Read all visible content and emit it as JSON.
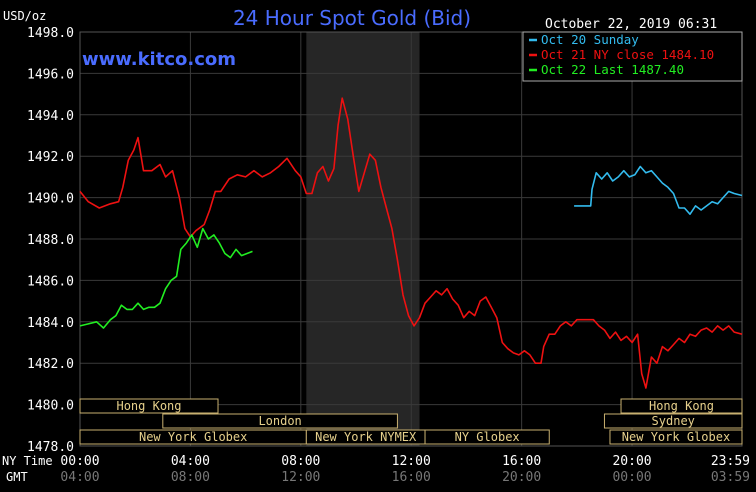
{
  "header": {
    "unit": "USD/oz",
    "title": "24 Hour Spot Gold (Bid)",
    "timestamp": "October 22, 2019 06:31",
    "website": "www.kitco.com"
  },
  "colors": {
    "background": "#000000",
    "grid": "#3a3a3a",
    "title": "#4a6cff",
    "website": "#4a6cff",
    "text": "#ffffff",
    "session_fill": "#e6d08c",
    "session_border": "#c8b070",
    "shade": "#262626"
  },
  "chart_data": {
    "type": "line",
    "title": "24 Hour Spot Gold (Bid)",
    "ylabel": "USD/oz",
    "ylim": [
      1478,
      1498
    ],
    "yticks": [
      "1498.0",
      "1496.0",
      "1494.0",
      "1492.0",
      "1490.0",
      "1488.0",
      "1486.0",
      "1484.0",
      "1482.0",
      "1480.0",
      "1478.0"
    ],
    "x_row_labels": {
      "ny_time": "NY Time",
      "gmt": "GMT"
    },
    "xticks_ny": [
      "00:00",
      "04:00",
      "08:00",
      "12:00",
      "16:00",
      "20:00",
      "23:59"
    ],
    "xticks_gmt": [
      "04:00",
      "08:00",
      "12:00",
      "16:00",
      "20:00",
      "00:00",
      "03:59"
    ],
    "xticks_hours": [
      0,
      4,
      8,
      12,
      16,
      20,
      23.983
    ],
    "xlim_hours": [
      0,
      23.983
    ],
    "grid": true,
    "legend_position": "top-right",
    "series": [
      {
        "name": "Oct 20 Sunday",
        "color": "#33bbee",
        "points": [
          [
            17.9,
            1489.6
          ],
          [
            18.5,
            1489.6
          ],
          [
            18.55,
            1490.4
          ],
          [
            18.7,
            1491.2
          ],
          [
            18.9,
            1490.9
          ],
          [
            19.1,
            1491.2
          ],
          [
            19.3,
            1490.8
          ],
          [
            19.5,
            1491.0
          ],
          [
            19.7,
            1491.3
          ],
          [
            19.9,
            1491.0
          ],
          [
            20.1,
            1491.1
          ],
          [
            20.3,
            1491.5
          ],
          [
            20.5,
            1491.2
          ],
          [
            20.7,
            1491.3
          ],
          [
            20.9,
            1491.0
          ],
          [
            21.1,
            1490.7
          ],
          [
            21.3,
            1490.5
          ],
          [
            21.5,
            1490.2
          ],
          [
            21.7,
            1489.5
          ],
          [
            21.9,
            1489.5
          ],
          [
            22.1,
            1489.2
          ],
          [
            22.3,
            1489.6
          ],
          [
            22.5,
            1489.4
          ],
          [
            22.7,
            1489.6
          ],
          [
            22.9,
            1489.8
          ],
          [
            23.1,
            1489.7
          ],
          [
            23.3,
            1490.0
          ],
          [
            23.5,
            1490.3
          ],
          [
            23.7,
            1490.2
          ],
          [
            23.983,
            1490.1
          ]
        ]
      },
      {
        "name": "Oct 21 NY close 1484.10",
        "color": "#ee1111",
        "points": [
          [
            0,
            1490.3
          ],
          [
            0.3,
            1489.8
          ],
          [
            0.7,
            1489.5
          ],
          [
            1.1,
            1489.7
          ],
          [
            1.4,
            1489.8
          ],
          [
            1.55,
            1490.5
          ],
          [
            1.75,
            1491.8
          ],
          [
            1.95,
            1492.3
          ],
          [
            2.1,
            1492.9
          ],
          [
            2.3,
            1491.3
          ],
          [
            2.6,
            1491.3
          ],
          [
            2.9,
            1491.6
          ],
          [
            3.1,
            1491.0
          ],
          [
            3.35,
            1491.3
          ],
          [
            3.6,
            1490.0
          ],
          [
            3.8,
            1488.5
          ],
          [
            4.0,
            1488.1
          ],
          [
            4.2,
            1488.4
          ],
          [
            4.5,
            1488.7
          ],
          [
            4.7,
            1489.4
          ],
          [
            4.9,
            1490.3
          ],
          [
            5.1,
            1490.3
          ],
          [
            5.4,
            1490.9
          ],
          [
            5.7,
            1491.1
          ],
          [
            6.0,
            1491.0
          ],
          [
            6.3,
            1491.3
          ],
          [
            6.6,
            1491.0
          ],
          [
            6.9,
            1491.2
          ],
          [
            7.2,
            1491.5
          ],
          [
            7.5,
            1491.9
          ],
          [
            7.8,
            1491.3
          ],
          [
            8.0,
            1491.0
          ],
          [
            8.2,
            1490.2
          ],
          [
            8.4,
            1490.2
          ],
          [
            8.6,
            1491.2
          ],
          [
            8.8,
            1491.5
          ],
          [
            9.0,
            1490.8
          ],
          [
            9.2,
            1491.4
          ],
          [
            9.35,
            1493.5
          ],
          [
            9.5,
            1494.8
          ],
          [
            9.7,
            1493.8
          ],
          [
            9.9,
            1492.0
          ],
          [
            10.1,
            1490.3
          ],
          [
            10.3,
            1491.2
          ],
          [
            10.5,
            1492.1
          ],
          [
            10.7,
            1491.8
          ],
          [
            10.9,
            1490.5
          ],
          [
            11.1,
            1489.5
          ],
          [
            11.3,
            1488.5
          ],
          [
            11.5,
            1487.0
          ],
          [
            11.7,
            1485.3
          ],
          [
            11.9,
            1484.3
          ],
          [
            12.1,
            1483.8
          ],
          [
            12.3,
            1484.2
          ],
          [
            12.5,
            1484.9
          ],
          [
            12.7,
            1485.2
          ],
          [
            12.9,
            1485.5
          ],
          [
            13.1,
            1485.3
          ],
          [
            13.3,
            1485.6
          ],
          [
            13.5,
            1485.1
          ],
          [
            13.7,
            1484.8
          ],
          [
            13.9,
            1484.2
          ],
          [
            14.1,
            1484.5
          ],
          [
            14.3,
            1484.3
          ],
          [
            14.5,
            1485.0
          ],
          [
            14.7,
            1485.2
          ],
          [
            14.9,
            1484.7
          ],
          [
            15.1,
            1484.2
          ],
          [
            15.3,
            1483.0
          ],
          [
            15.5,
            1482.7
          ],
          [
            15.7,
            1482.5
          ],
          [
            15.9,
            1482.4
          ],
          [
            16.1,
            1482.6
          ],
          [
            16.3,
            1482.4
          ],
          [
            16.5,
            1482.0
          ],
          [
            16.7,
            1482.0
          ],
          [
            16.8,
            1482.8
          ],
          [
            17.0,
            1483.4
          ],
          [
            17.2,
            1483.4
          ],
          [
            17.4,
            1483.8
          ],
          [
            17.6,
            1484.0
          ],
          [
            17.8,
            1483.8
          ],
          [
            18.0,
            1484.1
          ],
          [
            18.3,
            1484.1
          ],
          [
            18.6,
            1484.1
          ],
          [
            18.8,
            1483.8
          ],
          [
            19.0,
            1483.6
          ],
          [
            19.2,
            1483.2
          ],
          [
            19.4,
            1483.5
          ],
          [
            19.6,
            1483.1
          ],
          [
            19.8,
            1483.3
          ],
          [
            20.0,
            1483.0
          ],
          [
            20.2,
            1483.4
          ],
          [
            20.35,
            1481.5
          ],
          [
            20.5,
            1480.8
          ],
          [
            20.7,
            1482.3
          ],
          [
            20.9,
            1482.0
          ],
          [
            21.1,
            1482.8
          ],
          [
            21.3,
            1482.6
          ],
          [
            21.5,
            1482.9
          ],
          [
            21.7,
            1483.2
          ],
          [
            21.9,
            1483.0
          ],
          [
            22.1,
            1483.4
          ],
          [
            22.3,
            1483.3
          ],
          [
            22.5,
            1483.6
          ],
          [
            22.7,
            1483.7
          ],
          [
            22.9,
            1483.5
          ],
          [
            23.1,
            1483.8
          ],
          [
            23.3,
            1483.6
          ],
          [
            23.5,
            1483.8
          ],
          [
            23.7,
            1483.5
          ],
          [
            23.983,
            1483.4
          ]
        ]
      },
      {
        "name": "Oct 22 Last 1487.40",
        "color": "#22ee22",
        "points": [
          [
            0,
            1483.8
          ],
          [
            0.3,
            1483.9
          ],
          [
            0.6,
            1484.0
          ],
          [
            0.85,
            1483.7
          ],
          [
            1.1,
            1484.1
          ],
          [
            1.3,
            1484.3
          ],
          [
            1.5,
            1484.8
          ],
          [
            1.7,
            1484.6
          ],
          [
            1.9,
            1484.6
          ],
          [
            2.1,
            1484.9
          ],
          [
            2.3,
            1484.6
          ],
          [
            2.5,
            1484.7
          ],
          [
            2.7,
            1484.7
          ],
          [
            2.9,
            1484.9
          ],
          [
            3.1,
            1485.6
          ],
          [
            3.3,
            1486.0
          ],
          [
            3.5,
            1486.2
          ],
          [
            3.65,
            1487.5
          ],
          [
            3.85,
            1487.8
          ],
          [
            4.05,
            1488.2
          ],
          [
            4.25,
            1487.6
          ],
          [
            4.45,
            1488.5
          ],
          [
            4.65,
            1488.0
          ],
          [
            4.85,
            1488.2
          ],
          [
            5.05,
            1487.8
          ],
          [
            5.25,
            1487.3
          ],
          [
            5.45,
            1487.1
          ],
          [
            5.65,
            1487.5
          ],
          [
            5.85,
            1487.2
          ],
          [
            6.05,
            1487.3
          ],
          [
            6.25,
            1487.4
          ]
        ]
      }
    ],
    "shaded_hours": [
      [
        8.2,
        12.3
      ]
    ],
    "session_rows": [
      [
        {
          "label": "Hong Kong",
          "start": 0,
          "end": 5.0
        },
        {
          "label": "Hong Kong",
          "start": 19.6,
          "end": 23.983
        }
      ],
      [
        {
          "label": "London",
          "start": 3.0,
          "end": 11.5
        },
        {
          "label": "Sydney",
          "start": 19.0,
          "end": 23.983
        }
      ],
      [
        {
          "label": "New York Globex",
          "start": 0,
          "end": 8.2
        },
        {
          "label": "New York NYMEX",
          "start": 8.2,
          "end": 12.5
        },
        {
          "label": "NY Globex",
          "start": 12.5,
          "end": 17.0
        },
        {
          "label": "New York Globex",
          "start": 19.2,
          "end": 23.983
        }
      ]
    ]
  }
}
